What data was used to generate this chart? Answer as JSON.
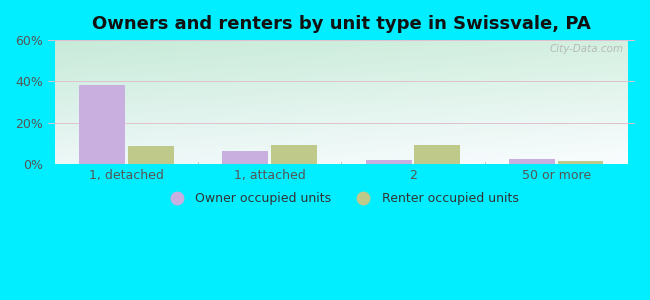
{
  "title": "Owners and renters by unit type in Swissvale, PA",
  "categories": [
    "1, detached",
    "1, attached",
    "2",
    "50 or more"
  ],
  "owner_values": [
    38.5,
    6.5,
    2.0,
    2.5
  ],
  "renter_values": [
    9.0,
    9.5,
    9.5,
    1.5
  ],
  "owner_color": "#c9aee0",
  "renter_color": "#bfc98a",
  "ylim": [
    0,
    60
  ],
  "yticks": [
    0,
    20,
    40,
    60
  ],
  "ytick_labels": [
    "0%",
    "20%",
    "40%",
    "60%"
  ],
  "background_outer": "#00eeff",
  "watermark": "City-Data.com",
  "legend_owner": "Owner occupied units",
  "legend_renter": "Renter occupied units",
  "bar_width": 0.32,
  "title_fontsize": 13,
  "tick_fontsize": 9,
  "legend_fontsize": 9,
  "bg_top_left": "#c8ecd8",
  "bg_top_right": "#d8eee0",
  "bg_bottom_left": "#e8f8ec",
  "bg_bottom_right": "#f5faf0"
}
